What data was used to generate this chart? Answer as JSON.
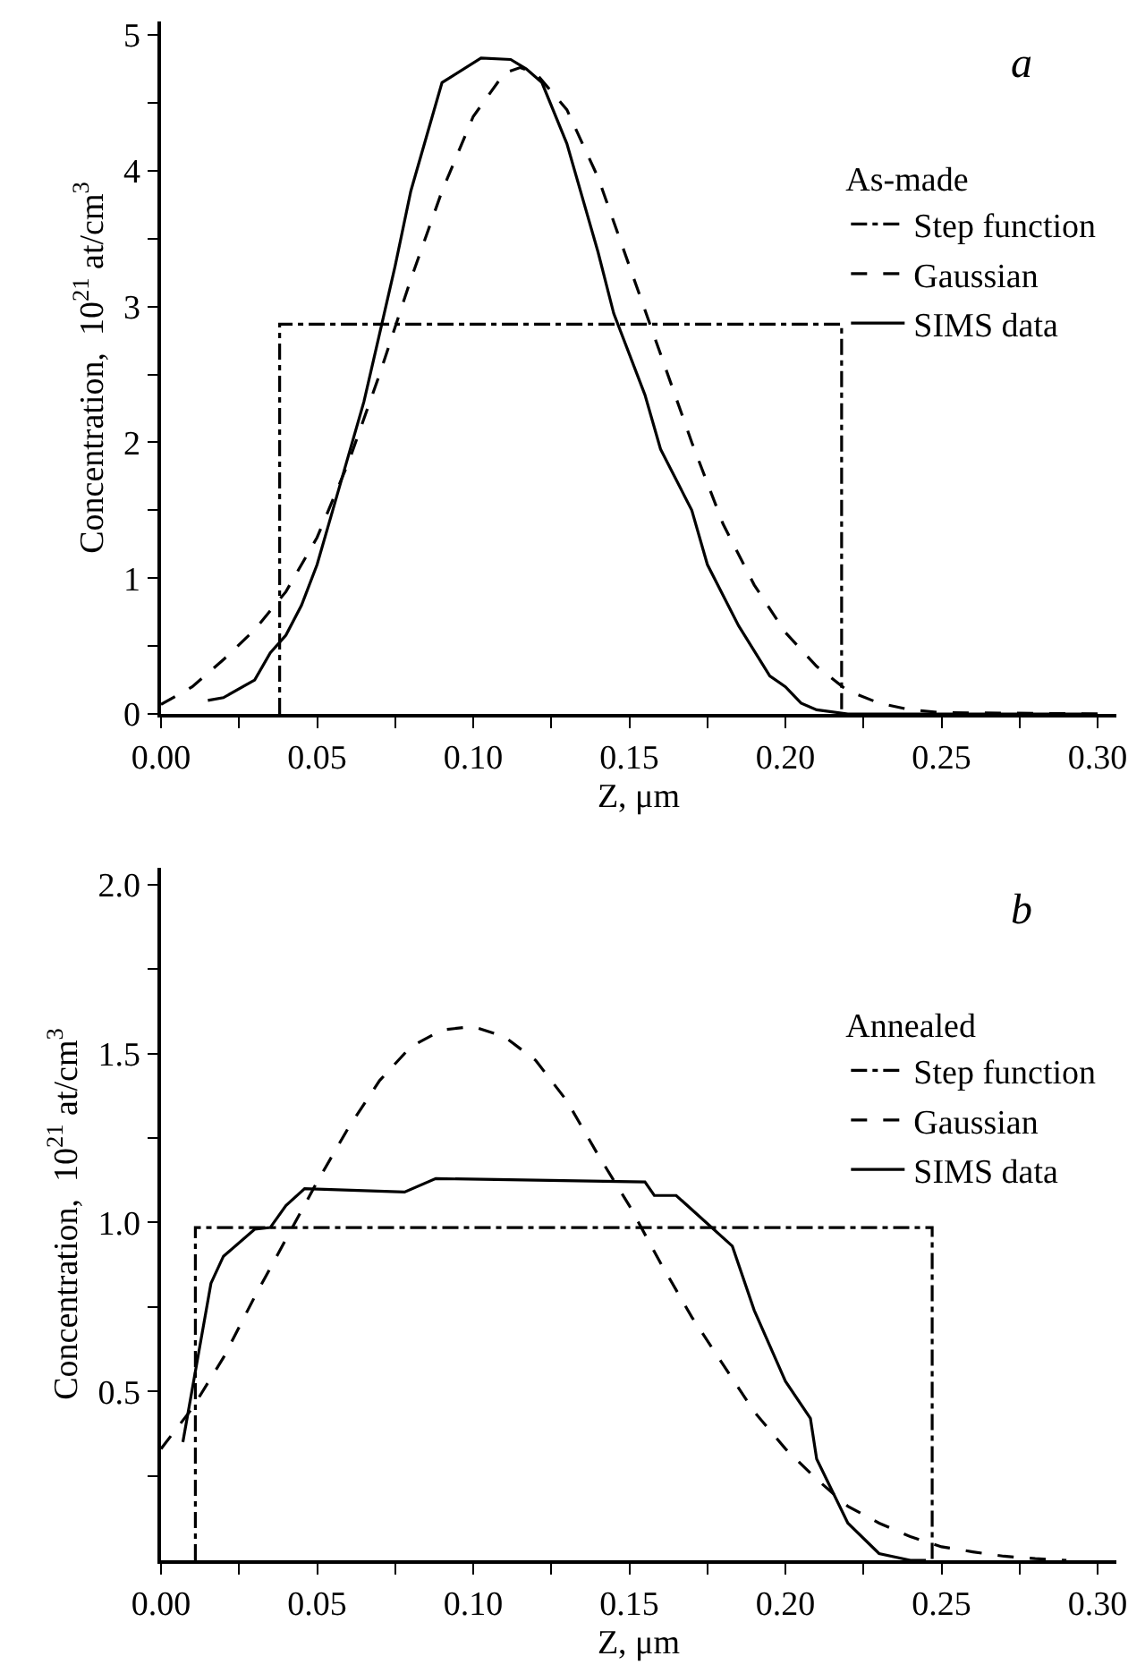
{
  "chart_data": [
    {
      "type": "line",
      "annotations": [
        "a"
      ],
      "xlabel": "Z, μm",
      "ylabel": "Concentration,  10$^{21}$ at/cm$^{3}$",
      "legend_title": "As-made",
      "legend": "top right",
      "xlim": [
        0,
        0.306
      ],
      "ylim": [
        0,
        5.1
      ],
      "xticks": [
        {
          "value": 0,
          "label": "0.00"
        },
        {
          "value": 0.025,
          "label": null
        },
        {
          "value": 0.05,
          "label": "0.05"
        },
        {
          "value": 0.075,
          "label": null
        },
        {
          "value": 0.1,
          "label": "0.10"
        },
        {
          "value": 0.125,
          "label": null
        },
        {
          "value": 0.15,
          "label": "0.15"
        },
        {
          "value": 0.175,
          "label": null
        },
        {
          "value": 0.2,
          "label": "0.20"
        },
        {
          "value": 0.225,
          "label": null
        },
        {
          "value": 0.25,
          "label": "0.25"
        },
        {
          "value": 0.275,
          "label": null
        },
        {
          "value": 0.3,
          "label": "0.30"
        }
      ],
      "yticks": [
        0,
        {
          "value": 0.5,
          "label": null
        },
        1,
        {
          "value": 1.5,
          "label": null
        },
        2,
        {
          "value": 2.5,
          "label": null
        },
        3,
        {
          "value": 3.5,
          "label": null
        },
        4,
        {
          "value": 4.5,
          "label": null
        },
        5
      ],
      "series": [
        {
          "name": "Step function",
          "color": "#000000",
          "line_style": "dashdot",
          "x": [
            0.038,
            0.038,
            0.218,
            0.218
          ],
          "values": [
            0,
            2.87,
            2.87,
            0
          ]
        },
        {
          "name": "Gaussian",
          "color": "#000000",
          "line_style": "dashed",
          "x": [
            0,
            0.01,
            0.02,
            0.03,
            0.04,
            0.05,
            0.06,
            0.07,
            0.08,
            0.09,
            0.1,
            0.11,
            0.115,
            0.12,
            0.13,
            0.14,
            0.15,
            0.16,
            0.17,
            0.18,
            0.19,
            0.2,
            0.21,
            0.22,
            0.23,
            0.24,
            0.25,
            0.3
          ],
          "values": [
            0.07,
            0.2,
            0.4,
            0.62,
            0.9,
            1.3,
            1.85,
            2.5,
            3.2,
            3.85,
            4.4,
            4.72,
            4.76,
            4.72,
            4.45,
            3.95,
            3.3,
            2.65,
            2.0,
            1.4,
            0.95,
            0.6,
            0.35,
            0.17,
            0.08,
            0.03,
            0.01,
            0
          ]
        },
        {
          "name": "SIMS data",
          "color": "#000000",
          "line_style": "solid",
          "x": [
            0.015,
            0.02,
            0.03,
            0.035,
            0.04,
            0.045,
            0.05,
            0.055,
            0.06,
            0.065,
            0.07,
            0.075,
            0.08,
            0.085,
            0.09,
            0.1025,
            0.112,
            0.117,
            0.122,
            0.13,
            0.14,
            0.145,
            0.155,
            0.16,
            0.17,
            0.175,
            0.185,
            0.195,
            0.2,
            0.205,
            0.21,
            0.22,
            0.3
          ],
          "values": [
            0.1,
            0.12,
            0.25,
            0.45,
            0.58,
            0.8,
            1.1,
            1.5,
            1.9,
            2.3,
            2.8,
            3.3,
            3.85,
            4.25,
            4.65,
            4.83,
            4.82,
            4.75,
            4.65,
            4.2,
            3.4,
            2.95,
            2.35,
            1.95,
            1.5,
            1.1,
            0.65,
            0.28,
            0.2,
            0.08,
            0.03,
            0,
            0
          ]
        }
      ]
    },
    {
      "type": "line",
      "annotations": [
        "b"
      ],
      "xlabel": "Z, μm",
      "ylabel": "Concentration,  10$^{21}$ at/cm$^{3}$",
      "legend_title": "Annealed",
      "legend": "top right",
      "xlim": [
        0,
        0.306
      ],
      "ylim": [
        0,
        2.05
      ],
      "xticks": [
        {
          "value": 0,
          "label": "0.00"
        },
        {
          "value": 0.025,
          "label": null
        },
        {
          "value": 0.05,
          "label": "0.05"
        },
        {
          "value": 0.075,
          "label": null
        },
        {
          "value": 0.1,
          "label": "0.10"
        },
        {
          "value": 0.125,
          "label": null
        },
        {
          "value": 0.15,
          "label": "0.15"
        },
        {
          "value": 0.175,
          "label": null
        },
        {
          "value": 0.2,
          "label": "0.20"
        },
        {
          "value": 0.225,
          "label": null
        },
        {
          "value": 0.25,
          "label": "0.25"
        },
        {
          "value": 0.275,
          "label": null
        },
        {
          "value": 0.3,
          "label": "0.30"
        }
      ],
      "yticks": [
        {
          "value": 0.25,
          "label": null
        },
        0.5,
        {
          "value": 0.75,
          "label": null
        },
        {
          "value": 1,
          "label": "1.0"
        },
        {
          "value": 1.25,
          "label": null
        },
        1.5,
        {
          "value": 1.75,
          "label": null
        },
        {
          "value": 2,
          "label": "2.0"
        }
      ],
      "series": [
        {
          "name": "Step function",
          "color": "#000000",
          "line_style": "dashdot",
          "x": [
            0.011,
            0.011,
            0.247,
            0.247
          ],
          "values": [
            0,
            0.985,
            0.985,
            0
          ]
        },
        {
          "name": "Gaussian",
          "color": "#000000",
          "line_style": "dashed",
          "x": [
            0,
            0.01,
            0.02,
            0.03,
            0.04,
            0.05,
            0.06,
            0.07,
            0.08,
            0.09,
            0.1,
            0.11,
            0.12,
            0.13,
            0.14,
            0.15,
            0.16,
            0.17,
            0.18,
            0.19,
            0.2,
            0.21,
            0.22,
            0.23,
            0.24,
            0.25,
            0.26,
            0.27,
            0.28,
            0.29
          ],
          "values": [
            0.33,
            0.45,
            0.6,
            0.78,
            0.95,
            1.12,
            1.28,
            1.42,
            1.52,
            1.57,
            1.58,
            1.55,
            1.48,
            1.36,
            1.2,
            1.05,
            0.88,
            0.72,
            0.58,
            0.44,
            0.33,
            0.24,
            0.16,
            0.11,
            0.07,
            0.04,
            0.025,
            0.012,
            0.005,
            0
          ]
        },
        {
          "name": "SIMS data",
          "color": "#000000",
          "line_style": "solid",
          "x": [
            0.007,
            0.016,
            0.02,
            0.03,
            0.035,
            0.04,
            0.046,
            0.078,
            0.088,
            0.155,
            0.158,
            0.165,
            0.183,
            0.19,
            0.2,
            0.208,
            0.21,
            0.22,
            0.23,
            0.24,
            0.245
          ],
          "values": [
            0.35,
            0.82,
            0.9,
            0.98,
            0.985,
            1.05,
            1.1,
            1.09,
            1.13,
            1.12,
            1.08,
            1.08,
            0.93,
            0.74,
            0.53,
            0.42,
            0.3,
            0.11,
            0.02,
            0,
            0
          ]
        }
      ]
    }
  ]
}
